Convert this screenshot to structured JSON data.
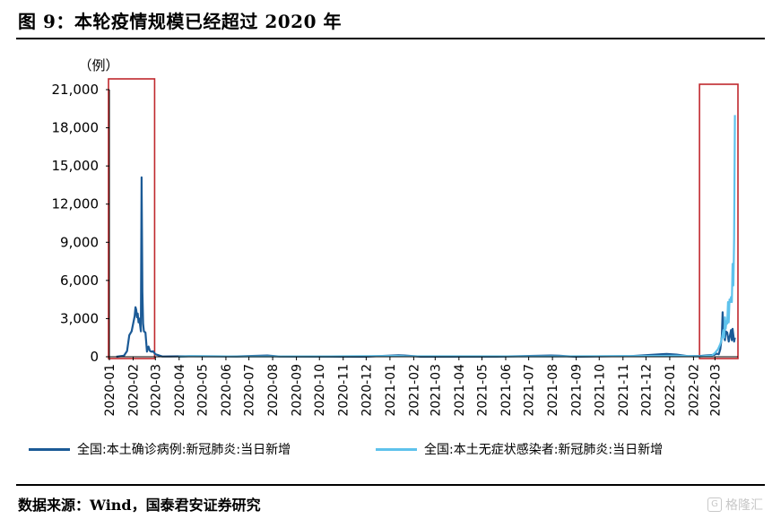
{
  "header": {
    "title": "图 9：本轮疫情规模已经超过 2020 年"
  },
  "footer": {
    "source": "数据来源：Wind，国泰君安证券研究",
    "watermark": "格隆汇"
  },
  "colors": {
    "series1": "#1b5a96",
    "series2": "#5ec2ec",
    "highlight_box": "#c0282d",
    "axis": "#000000"
  },
  "chart_data": {
    "type": "line",
    "title": "本轮疫情规模已经超过 2020 年",
    "unit_label": "（例）",
    "ylim": [
      0,
      21000
    ],
    "yticks": [
      "0",
      "3,000",
      "6,000",
      "9,000",
      "12,000",
      "15,000",
      "18,000",
      "21,000"
    ],
    "ytick_values": [
      0,
      3000,
      6000,
      9000,
      12000,
      15000,
      18000,
      21000
    ],
    "xticks": [
      "2020-01",
      "2020-02",
      "2020-03",
      "2020-04",
      "2020-05",
      "2020-06",
      "2020-07",
      "2020-08",
      "2020-09",
      "2020-10",
      "2020-11",
      "2020-12",
      "2021-01",
      "2021-02",
      "2021-03",
      "2021-04",
      "2021-05",
      "2021-06",
      "2021-07",
      "2021-08",
      "2021-09",
      "2021-10",
      "2021-11",
      "2021-12",
      "2022-01",
      "2022-02",
      "2022-03"
    ],
    "xrange": [
      "2020-01-01",
      "2022-03-31"
    ],
    "grid": false,
    "legend_position": "bottom",
    "series": [
      {
        "name": "全国:本土确诊病例:新冠肺炎:当日新增",
        "points": [
          [
            "2020-01-10",
            0
          ],
          [
            "2020-01-20",
            80
          ],
          [
            "2020-01-24",
            450
          ],
          [
            "2020-01-27",
            1700
          ],
          [
            "2020-01-30",
            2000
          ],
          [
            "2020-02-01",
            2600
          ],
          [
            "2020-02-03",
            3200
          ],
          [
            "2020-02-04",
            3900
          ],
          [
            "2020-02-05",
            3700
          ],
          [
            "2020-02-06",
            3100
          ],
          [
            "2020-02-07",
            3400
          ],
          [
            "2020-02-08",
            2700
          ],
          [
            "2020-02-09",
            3000
          ],
          [
            "2020-02-10",
            2500
          ],
          [
            "2020-02-11",
            2000
          ],
          [
            "2020-02-12",
            14100
          ],
          [
            "2020-02-13",
            5100
          ],
          [
            "2020-02-14",
            2600
          ],
          [
            "2020-02-15",
            2000
          ],
          [
            "2020-02-17",
            1900
          ],
          [
            "2020-02-19",
            400
          ],
          [
            "2020-02-21",
            800
          ],
          [
            "2020-02-23",
            450
          ],
          [
            "2020-02-25",
            400
          ],
          [
            "2020-02-27",
            430
          ],
          [
            "2020-03-01",
            200
          ],
          [
            "2020-03-05",
            120
          ],
          [
            "2020-03-10",
            20
          ],
          [
            "2020-03-20",
            30
          ],
          [
            "2020-04-15",
            40
          ],
          [
            "2020-06-15",
            30
          ],
          [
            "2020-07-25",
            100
          ],
          [
            "2020-08-10",
            20
          ],
          [
            "2020-12-01",
            10
          ],
          [
            "2021-01-12",
            120
          ],
          [
            "2021-01-20",
            100
          ],
          [
            "2021-02-10",
            10
          ],
          [
            "2021-05-20",
            10
          ],
          [
            "2021-07-30",
            100
          ],
          [
            "2021-08-10",
            80
          ],
          [
            "2021-08-30",
            5
          ],
          [
            "2021-10-30",
            50
          ],
          [
            "2021-11-10",
            40
          ],
          [
            "2021-12-20",
            200
          ],
          [
            "2021-12-28",
            220
          ],
          [
            "2022-01-10",
            170
          ],
          [
            "2022-01-25",
            50
          ],
          [
            "2022-02-10",
            60
          ],
          [
            "2022-02-20",
            120
          ],
          [
            "2022-02-28",
            150
          ],
          [
            "2022-03-03",
            250
          ],
          [
            "2022-03-06",
            200
          ],
          [
            "2022-03-08",
            600
          ],
          [
            "2022-03-10",
            1600
          ],
          [
            "2022-03-11",
            3500
          ],
          [
            "2022-03-12",
            1800
          ],
          [
            "2022-03-14",
            1300
          ],
          [
            "2022-03-15",
            2000
          ],
          [
            "2022-03-17",
            1900
          ],
          [
            "2022-03-19",
            1200
          ],
          [
            "2022-03-20",
            1500
          ],
          [
            "2022-03-22",
            2100
          ],
          [
            "2022-03-23",
            1300
          ],
          [
            "2022-03-24",
            2200
          ],
          [
            "2022-03-26",
            1200
          ],
          [
            "2022-03-27",
            1500
          ]
        ]
      },
      {
        "name": "全国:本土无症状感染者:新冠肺炎:当日新增",
        "points": [
          [
            "2020-03-31",
            0
          ],
          [
            "2020-04-15",
            40
          ],
          [
            "2020-06-15",
            20
          ],
          [
            "2020-10-15",
            30
          ],
          [
            "2021-01-10",
            60
          ],
          [
            "2021-01-20",
            40
          ],
          [
            "2021-08-05",
            30
          ],
          [
            "2021-12-20",
            60
          ],
          [
            "2022-01-10",
            80
          ],
          [
            "2022-02-10",
            30
          ],
          [
            "2022-02-25",
            100
          ],
          [
            "2022-03-01",
            300
          ],
          [
            "2022-03-05",
            600
          ],
          [
            "2022-03-08",
            1000
          ],
          [
            "2022-03-10",
            1400
          ],
          [
            "2022-03-12",
            2100
          ],
          [
            "2022-03-13",
            1500
          ],
          [
            "2022-03-14",
            3100
          ],
          [
            "2022-03-15",
            2200
          ],
          [
            "2022-03-16",
            2800
          ],
          [
            "2022-03-17",
            2600
          ],
          [
            "2022-03-18",
            4300
          ],
          [
            "2022-03-19",
            2700
          ],
          [
            "2022-03-20",
            4500
          ],
          [
            "2022-03-21",
            4300
          ],
          [
            "2022-03-22",
            4700
          ],
          [
            "2022-03-23",
            4300
          ],
          [
            "2022-03-24",
            7300
          ],
          [
            "2022-03-25",
            5600
          ],
          [
            "2022-03-26",
            9200
          ],
          [
            "2022-03-27",
            19000
          ]
        ]
      }
    ],
    "highlight_regions": [
      {
        "from": "2020-01-01",
        "to": "2020-02-29"
      },
      {
        "from": "2022-02-10",
        "to": "2022-03-31"
      }
    ]
  }
}
